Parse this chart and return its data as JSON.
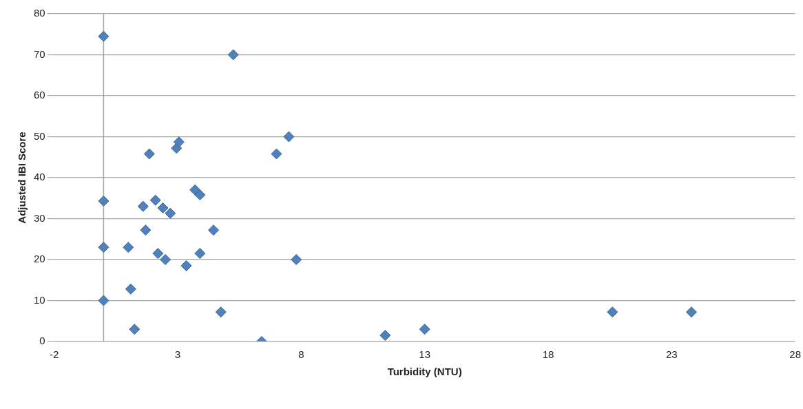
{
  "chart_data": {
    "type": "scatter",
    "xlabel": "Turbidity (NTU)",
    "ylabel": "Adjusted IBI Score",
    "x": [
      0,
      0,
      0,
      0,
      1.0,
      1.1,
      1.25,
      1.6,
      1.7,
      1.85,
      2.1,
      2.2,
      2.4,
      2.5,
      2.7,
      2.95,
      3.05,
      3.35,
      3.7,
      3.9,
      3.9,
      4.45,
      4.75,
      5.25,
      6.4,
      7.0,
      7.5,
      7.8,
      11.4,
      13.0,
      20.6,
      23.8
    ],
    "series": [
      {
        "color": "#4f81bd",
        "values": [
          74.5,
          34.3,
          23,
          10,
          23,
          12.8,
          3,
          33,
          27.2,
          45.8,
          34.5,
          21.5,
          32.6,
          20,
          31.3,
          47.2,
          48.7,
          18.5,
          37,
          35.8,
          21.5,
          27.2,
          7.2,
          70,
          0,
          45.8,
          50,
          20,
          1.5,
          3,
          7.2,
          7.2
        ]
      }
    ],
    "xlim": [
      -2,
      28
    ],
    "xticks": [
      -2,
      3,
      8,
      13,
      18,
      23,
      28
    ],
    "ylim": [
      0,
      80
    ],
    "yticks": [
      0,
      10,
      20,
      30,
      40,
      50,
      60,
      70,
      80
    ],
    "grid": "y",
    "marker": "diamond",
    "legend": false,
    "ref_lines": [
      {
        "axis": "x",
        "value": 0,
        "color": "#a6a6a6"
      }
    ]
  }
}
